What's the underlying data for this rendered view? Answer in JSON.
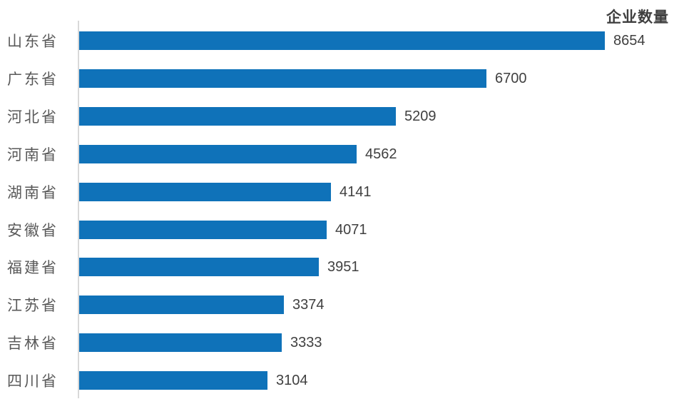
{
  "chart_data": {
    "type": "bar",
    "orientation": "horizontal",
    "title": "企业数量",
    "categories": [
      "山东省",
      "广东省",
      "河北省",
      "河南省",
      "湖南省",
      "安徽省",
      "福建省",
      "江苏省",
      "吉林省",
      "四川省"
    ],
    "values": [
      8654,
      6700,
      5209,
      4562,
      4141,
      4071,
      3951,
      3374,
      3333,
      3104
    ],
    "data_labels": true,
    "xlim": [
      0,
      8654
    ],
    "grid": false,
    "legend": false,
    "colors": {
      "bar": "#0f72b9",
      "value_label": "#404040",
      "category_label": "#595959",
      "title": "#3f3f3f",
      "axis_line": "#d9d9d9",
      "background": "#ffffff"
    }
  }
}
